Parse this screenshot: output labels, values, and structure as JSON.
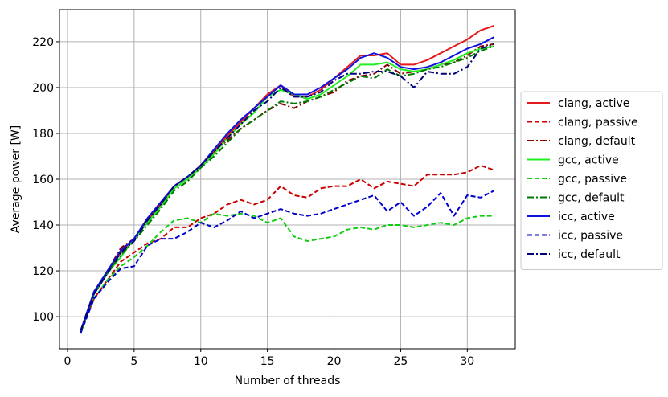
{
  "chart_data": {
    "type": "line",
    "title": "",
    "xlabel": "Number of threads",
    "ylabel": "Average power [W]",
    "xlim": [
      -0.6,
      33.6
    ],
    "ylim": [
      86,
      234
    ],
    "xticks": [
      0,
      5,
      10,
      15,
      20,
      25,
      30
    ],
    "yticks": [
      100,
      120,
      140,
      160,
      180,
      200,
      220
    ],
    "grid": true,
    "legend_position": "outside-right",
    "x": [
      1,
      2,
      3,
      4,
      5,
      6,
      7,
      8,
      9,
      10,
      11,
      12,
      13,
      14,
      15,
      16,
      17,
      18,
      19,
      20,
      21,
      22,
      23,
      24,
      25,
      26,
      27,
      28,
      29,
      30,
      31,
      32
    ],
    "series": [
      {
        "name": "clang, active",
        "color": "#e41a1c",
        "dash": "solid",
        "values": [
          94,
          111,
          119,
          128,
          134,
          142,
          149,
          157,
          161,
          166,
          172,
          179,
          185,
          191,
          197,
          201,
          196,
          196,
          199,
          204,
          209,
          214,
          214,
          215,
          210,
          210,
          212,
          215,
          218,
          221,
          225,
          227
        ]
      },
      {
        "name": "clang, passive",
        "color": "#cc0000",
        "dash": "dashed",
        "values": [
          94,
          108,
          116,
          124,
          128,
          132,
          134,
          139,
          139,
          143,
          145,
          149,
          151,
          149,
          151,
          157,
          153,
          152,
          156,
          157,
          157,
          160,
          156,
          159,
          158,
          157,
          162,
          162,
          162,
          163,
          166,
          164
        ]
      },
      {
        "name": "clang, default",
        "color": "#8b0000",
        "dash": "dashdot",
        "values": [
          94,
          111,
          120,
          130,
          134,
          142,
          149,
          156,
          160,
          166,
          172,
          177,
          182,
          186,
          190,
          193,
          191,
          194,
          196,
          198,
          203,
          205,
          206,
          210,
          206,
          207,
          208,
          210,
          211,
          214,
          218,
          219
        ]
      },
      {
        "name": "gcc, active",
        "color": "#22ee22",
        "dash": "solid",
        "values": [
          93,
          110,
          119,
          126,
          134,
          141,
          148,
          156,
          160,
          165,
          171,
          178,
          184,
          189,
          196,
          199,
          197,
          195,
          197,
          201,
          205,
          210,
          210,
          211,
          208,
          207,
          208,
          210,
          212,
          215,
          217,
          218
        ]
      },
      {
        "name": "gcc, passive",
        "color": "#11cc11",
        "dash": "dashed",
        "values": [
          93,
          108,
          116,
          122,
          126,
          131,
          137,
          142,
          143,
          141,
          145,
          144,
          145,
          144,
          141,
          143,
          135,
          133,
          134,
          135,
          138,
          139,
          138,
          140,
          140,
          139,
          140,
          141,
          140,
          143,
          144,
          144
        ]
      },
      {
        "name": "gcc, default",
        "color": "#007700",
        "dash": "dashdot",
        "values": [
          93,
          110,
          119,
          127,
          133,
          140,
          147,
          155,
          159,
          165,
          170,
          176,
          182,
          186,
          190,
          194,
          193,
          194,
          196,
          199,
          202,
          205,
          204,
          208,
          205,
          206,
          208,
          209,
          211,
          213,
          216,
          218
        ]
      },
      {
        "name": "icc, active",
        "color": "#1111dd",
        "dash": "solid",
        "values": [
          94,
          111,
          120,
          129,
          134,
          143,
          150,
          157,
          161,
          166,
          173,
          180,
          186,
          191,
          196,
          201,
          197,
          197,
          200,
          204,
          208,
          213,
          215,
          213,
          209,
          208,
          209,
          211,
          214,
          217,
          219,
          222
        ]
      },
      {
        "name": "icc, passive",
        "color": "#0000cc",
        "dash": "dashed",
        "values": [
          93,
          108,
          115,
          121,
          122,
          131,
          134,
          134,
          137,
          141,
          139,
          142,
          146,
          143,
          145,
          147,
          145,
          144,
          145,
          147,
          149,
          151,
          153,
          146,
          150,
          144,
          148,
          154,
          144,
          153,
          152,
          155
        ]
      },
      {
        "name": "icc, default",
        "color": "#00007a",
        "dash": "dashdot",
        "values": [
          94,
          110,
          119,
          128,
          133,
          142,
          149,
          157,
          161,
          166,
          172,
          178,
          184,
          190,
          194,
          200,
          196,
          196,
          198,
          203,
          206,
          206,
          207,
          207,
          205,
          200,
          207,
          206,
          206,
          209,
          217,
          219
        ]
      }
    ]
  }
}
